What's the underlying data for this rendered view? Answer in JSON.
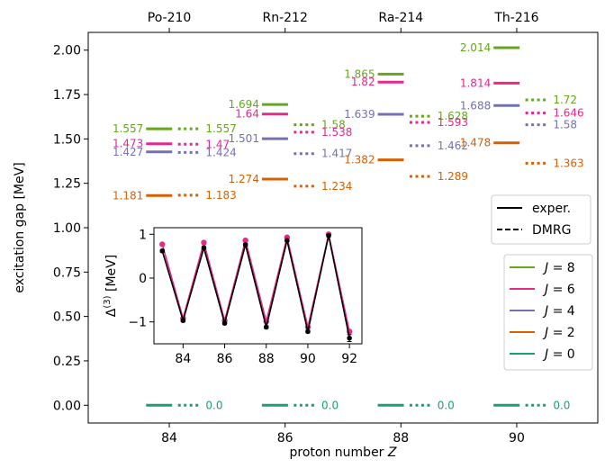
{
  "chart_data": [
    {
      "type": "line",
      "xlabel_prefix": "proton number ",
      "xlabel_var": "Z",
      "ylabel": "excitation gap [MeV]",
      "xlim": [
        82.6,
        91.4
      ],
      "ylim": [
        -0.1,
        2.1
      ],
      "xticks": [
        84,
        86,
        88,
        90
      ],
      "yticks": [
        "0.00",
        "0.25",
        "0.50",
        "0.75",
        "1.00",
        "1.25",
        "1.50",
        "1.75",
        "2.00"
      ],
      "top_ticks": [
        {
          "z": 84,
          "label": "Po-210"
        },
        {
          "z": 86,
          "label": "Rn-212"
        },
        {
          "z": 88,
          "label": "Ra-214"
        },
        {
          "z": 90,
          "label": "Th-216"
        }
      ],
      "nuclei": [
        84,
        86,
        88,
        90
      ],
      "series": [
        {
          "name": "J = 8",
          "J": "8",
          "color": "#66a61e",
          "exper": [
            1.557,
            1.694,
            1.865,
            2.014
          ],
          "dmrg": [
            1.557,
            1.58,
            1.628,
            1.72
          ],
          "exper_labels": [
            "1.557",
            "1.694",
            "1.865",
            "2.014"
          ],
          "dmrg_labels": [
            "1.557",
            "1.58",
            "1.628",
            "1.72"
          ]
        },
        {
          "name": "J = 6",
          "J": "6",
          "color": "#e7298a",
          "exper": [
            1.473,
            1.64,
            1.82,
            1.814
          ],
          "dmrg": [
            1.47,
            1.538,
            1.593,
            1.646
          ],
          "exper_labels": [
            "1.473",
            "1.64",
            "1.82",
            "1.814"
          ],
          "dmrg_labels": [
            "1.47",
            "1.538",
            "1.593",
            "1.646"
          ]
        },
        {
          "name": "J = 4",
          "J": "4",
          "color": "#7570b3",
          "exper": [
            1.427,
            1.501,
            1.639,
            1.688
          ],
          "dmrg": [
            1.424,
            1.417,
            1.462,
            1.58
          ],
          "exper_labels": [
            "1.427",
            "1.501",
            "1.639",
            "1.688"
          ],
          "dmrg_labels": [
            "1.424",
            "1.417",
            "1.462",
            "1.58"
          ]
        },
        {
          "name": "J = 2",
          "J": "2",
          "color": "#d95f02",
          "exper": [
            1.181,
            1.274,
            1.382,
            1.478
          ],
          "dmrg": [
            1.183,
            1.234,
            1.289,
            1.363
          ],
          "exper_labels": [
            "1.181",
            "1.274",
            "1.382",
            "1.478"
          ],
          "dmrg_labels": [
            "1.183",
            "1.234",
            "1.289",
            "1.363"
          ]
        },
        {
          "name": "J = 0",
          "J": "0",
          "color": "#1b9e77",
          "exper": [
            0.0,
            0.0,
            0.0,
            0.0
          ],
          "dmrg": [
            0.0,
            0.0,
            0.0,
            0.0
          ],
          "exper_labels": [],
          "dmrg_labels": [
            "0.0",
            "0.0",
            "0.0",
            "0.0"
          ]
        }
      ],
      "style_legend": [
        {
          "label": "exper.",
          "style": "solid"
        },
        {
          "label": "DMRG",
          "style": "dashed"
        }
      ],
      "style_legend_placement": "center-right",
      "j_legend_placement": "lower-right",
      "grid": false
    },
    {
      "type": "line",
      "inset": true,
      "ylabel": "Δ(3) [MeV]",
      "xlim": [
        82.6,
        92.6
      ],
      "ylim": [
        -1.5,
        1.15
      ],
      "xticks": [
        84,
        86,
        88,
        90,
        92
      ],
      "yticks": [
        -1,
        0,
        1
      ],
      "x": [
        83,
        84,
        85,
        86,
        87,
        88,
        89,
        90,
        91,
        92
      ],
      "series": [
        {
          "name": "exper.",
          "color": "#000000",
          "values": [
            0.62,
            -0.97,
            0.69,
            -1.03,
            0.76,
            -1.12,
            0.86,
            -1.22,
            0.97,
            -1.37
          ],
          "errors": [
            0.03,
            0.03,
            0.03,
            0.03,
            0.03,
            0.03,
            0.03,
            0.03,
            0.03,
            0.08
          ]
        },
        {
          "name": "DMRG",
          "color": "#e7298a",
          "values": [
            0.77,
            -0.92,
            0.81,
            -0.97,
            0.86,
            -0.99,
            0.93,
            -1.12,
            1.0,
            -1.22
          ]
        }
      ]
    }
  ]
}
